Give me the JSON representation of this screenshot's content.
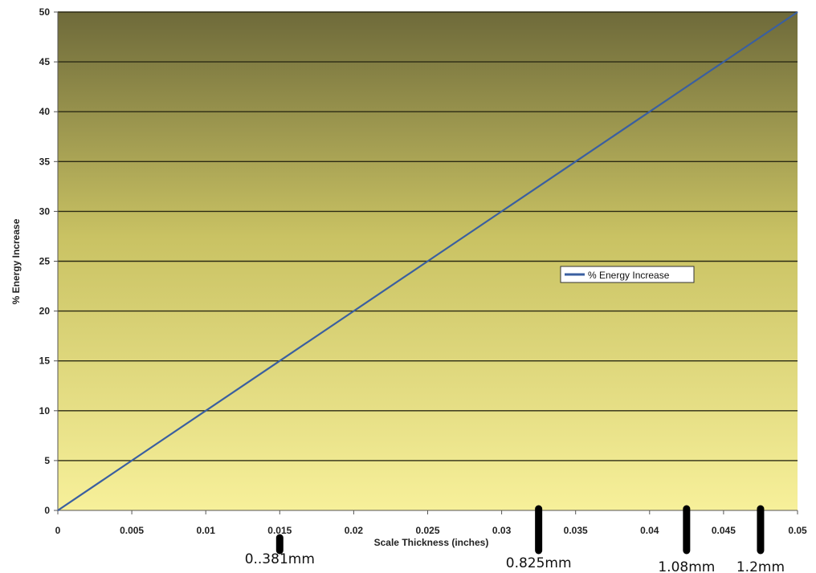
{
  "chart_data": {
    "type": "line",
    "title": "",
    "xlabel": "Scale Thickness (inches)",
    "ylabel": "% Energy Increase",
    "xlim": [
      0,
      0.05
    ],
    "ylim": [
      0,
      50
    ],
    "x_ticks": [
      "0",
      "0.005",
      "0.01",
      "0.015",
      "0.02",
      "0.025",
      "0.03",
      "0.035",
      "0.04",
      "0.045",
      "0.05"
    ],
    "y_ticks": [
      "0",
      "5",
      "10",
      "15",
      "20",
      "25",
      "30",
      "35",
      "40",
      "45",
      "50"
    ],
    "grid": "horizontal",
    "legend_position": "right",
    "background_gradient": [
      "#6e6a3a",
      "#f7f09a"
    ],
    "series": [
      {
        "name": "% Energy Increase",
        "color": "#3a5fa0",
        "x": [
          0,
          0.005,
          0.01,
          0.015,
          0.02,
          0.025,
          0.03,
          0.035,
          0.04,
          0.045,
          0.05
        ],
        "y": [
          0,
          5,
          10,
          15,
          20,
          25,
          30,
          35,
          40,
          45,
          50
        ]
      }
    ],
    "annotations": [
      {
        "x": 0.015,
        "text": "0..381mm"
      },
      {
        "x": 0.0325,
        "text": "0.825mm"
      },
      {
        "x": 0.0425,
        "text": "1.08mm"
      },
      {
        "x": 0.0475,
        "text": "1.2mm"
      }
    ]
  }
}
